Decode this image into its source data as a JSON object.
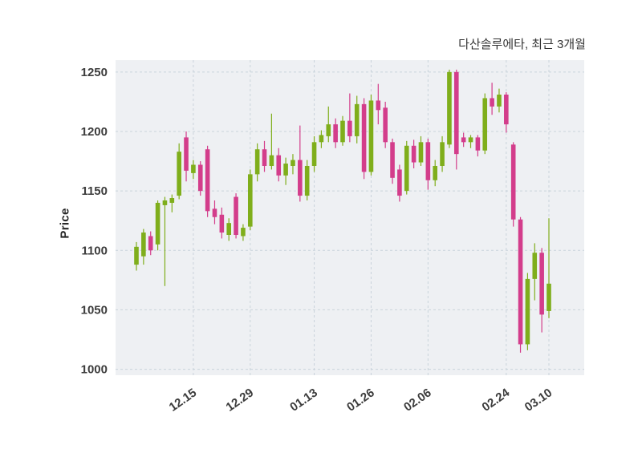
{
  "chart": {
    "title": "다산솔루에타, 최근 3개월",
    "ylabel": "Price"
  },
  "chart_data": {
    "type": "candlestick",
    "title": "다산솔루에타, 최근 3개월",
    "xlabel": "",
    "ylabel": "Price",
    "ylim": [
      995,
      1260
    ],
    "y_ticks": [
      1000,
      1050,
      1100,
      1150,
      1200,
      1250
    ],
    "x_tick_labels": [
      "12.15",
      "12.29",
      "01.13",
      "01.26",
      "02.06",
      "02.24",
      "03.10"
    ],
    "x_tick_indices": [
      8,
      16,
      25,
      33,
      41,
      52,
      58
    ],
    "grid": true,
    "legend": "none",
    "plot_bg_color": "#eef0f3",
    "grid_color": "#c9d3db",
    "up_color": "#7fae1b",
    "down_color": "#d33d8b",
    "candles_format": "[open, high, low, close]",
    "candles": [
      [
        1088,
        1107,
        1083,
        1103
      ],
      [
        1095,
        1118,
        1088,
        1115
      ],
      [
        1112,
        1116,
        1096,
        1100
      ],
      [
        1105,
        1142,
        1100,
        1140
      ],
      [
        1138,
        1145,
        1070,
        1142
      ],
      [
        1140,
        1147,
        1132,
        1144
      ],
      [
        1146,
        1190,
        1143,
        1183
      ],
      [
        1195,
        1200,
        1158,
        1167
      ],
      [
        1165,
        1176,
        1160,
        1172
      ],
      [
        1172,
        1175,
        1146,
        1150
      ],
      [
        1185,
        1188,
        1128,
        1133
      ],
      [
        1135,
        1142,
        1122,
        1128
      ],
      [
        1130,
        1136,
        1110,
        1115
      ],
      [
        1113,
        1127,
        1108,
        1123
      ],
      [
        1145,
        1148,
        1110,
        1113
      ],
      [
        1112,
        1122,
        1108,
        1119
      ],
      [
        1120,
        1168,
        1117,
        1164
      ],
      [
        1164,
        1190,
        1158,
        1185
      ],
      [
        1185,
        1192,
        1166,
        1171
      ],
      [
        1171,
        1215,
        1168,
        1180
      ],
      [
        1180,
        1186,
        1158,
        1163
      ],
      [
        1163,
        1178,
        1155,
        1173
      ],
      [
        1171,
        1181,
        1164,
        1176
      ],
      [
        1176,
        1205,
        1141,
        1146
      ],
      [
        1146,
        1176,
        1142,
        1171
      ],
      [
        1171,
        1196,
        1166,
        1191
      ],
      [
        1191,
        1201,
        1186,
        1197
      ],
      [
        1196,
        1221,
        1191,
        1206
      ],
      [
        1206,
        1211,
        1186,
        1191
      ],
      [
        1191,
        1213,
        1188,
        1209
      ],
      [
        1209,
        1232,
        1191,
        1196
      ],
      [
        1196,
        1230,
        1190,
        1223
      ],
      [
        1223,
        1228,
        1160,
        1166
      ],
      [
        1166,
        1231,
        1163,
        1226
      ],
      [
        1226,
        1240,
        1206,
        1218
      ],
      [
        1220,
        1225,
        1186,
        1191
      ],
      [
        1191,
        1194,
        1156,
        1161
      ],
      [
        1168,
        1172,
        1141,
        1146
      ],
      [
        1150,
        1192,
        1147,
        1188
      ],
      [
        1188,
        1193,
        1169,
        1174
      ],
      [
        1174,
        1196,
        1171,
        1191
      ],
      [
        1191,
        1194,
        1151,
        1159
      ],
      [
        1159,
        1176,
        1154,
        1171
      ],
      [
        1171,
        1196,
        1166,
        1191
      ],
      [
        1189,
        1252,
        1186,
        1250
      ],
      [
        1250,
        1252,
        1168,
        1181
      ],
      [
        1195,
        1199,
        1187,
        1191
      ],
      [
        1191,
        1197,
        1186,
        1195
      ],
      [
        1195,
        1197,
        1179,
        1184
      ],
      [
        1184,
        1232,
        1181,
        1228
      ],
      [
        1228,
        1241,
        1214,
        1221
      ],
      [
        1221,
        1236,
        1216,
        1231
      ],
      [
        1231,
        1233,
        1199,
        1206
      ],
      [
        1189,
        1191,
        1120,
        1126
      ],
      [
        1126,
        1128,
        1014,
        1021
      ],
      [
        1021,
        1081,
        1016,
        1076
      ],
      [
        1076,
        1106,
        1058,
        1098
      ],
      [
        1098,
        1102,
        1031,
        1046
      ],
      [
        1049,
        1127,
        1043,
        1072
      ]
    ]
  }
}
